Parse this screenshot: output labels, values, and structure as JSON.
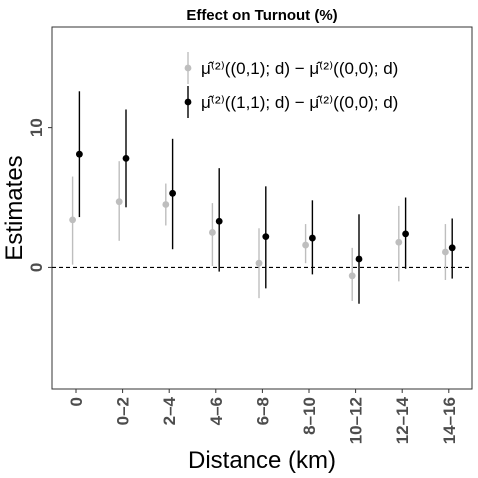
{
  "chart_data": {
    "type": "scatter",
    "title": "Effect on Turnout (%)",
    "xlabel": "Distance (km)",
    "ylabel": "Estimates",
    "categories": [
      "0",
      "0–2",
      "2–4",
      "4–6",
      "6–8",
      "8–10",
      "10–12",
      "12–14",
      "14–16"
    ],
    "ylim": [
      -8.7,
      17.2
    ],
    "yticks": [
      0,
      10
    ],
    "reference_line": 0,
    "legend_position": "top-right",
    "grid": false,
    "series": [
      {
        "name": "μ̂⁽²⁾((0,1); d) − μ̂⁽²⁾((0,0); d)",
        "color": "#bebebe",
        "points": [
          {
            "est": 3.4,
            "lo": 0.2,
            "hi": 6.5
          },
          {
            "est": 4.7,
            "lo": 1.9,
            "hi": 7.6
          },
          {
            "est": 4.5,
            "lo": 3.0,
            "hi": 6.0
          },
          {
            "est": 2.5,
            "lo": 0.1,
            "hi": 4.6
          },
          {
            "est": 0.3,
            "lo": -2.2,
            "hi": 2.8
          },
          {
            "est": 1.6,
            "lo": 0.3,
            "hi": 3.1
          },
          {
            "est": -0.6,
            "lo": -2.4,
            "hi": 1.4
          },
          {
            "est": 1.8,
            "lo": -1.0,
            "hi": 4.4
          },
          {
            "est": 1.1,
            "lo": -0.9,
            "hi": 3.1
          }
        ]
      },
      {
        "name": "μ̂⁽²⁾((1,1); d) − μ̂⁽²⁾((0,0); d)",
        "color": "#000000",
        "points": [
          {
            "est": 8.1,
            "lo": 3.6,
            "hi": 12.6
          },
          {
            "est": 7.8,
            "lo": 4.3,
            "hi": 11.3
          },
          {
            "est": 5.3,
            "lo": 1.3,
            "hi": 9.2
          },
          {
            "est": 3.3,
            "lo": -0.3,
            "hi": 7.1
          },
          {
            "est": 2.2,
            "lo": -1.5,
            "hi": 5.8
          },
          {
            "est": 2.1,
            "lo": -0.5,
            "hi": 4.8
          },
          {
            "est": 0.6,
            "lo": -2.6,
            "hi": 3.8
          },
          {
            "est": 2.4,
            "lo": -0.1,
            "hi": 5.0
          },
          {
            "est": 1.4,
            "lo": -0.8,
            "hi": 3.5
          }
        ]
      }
    ]
  }
}
